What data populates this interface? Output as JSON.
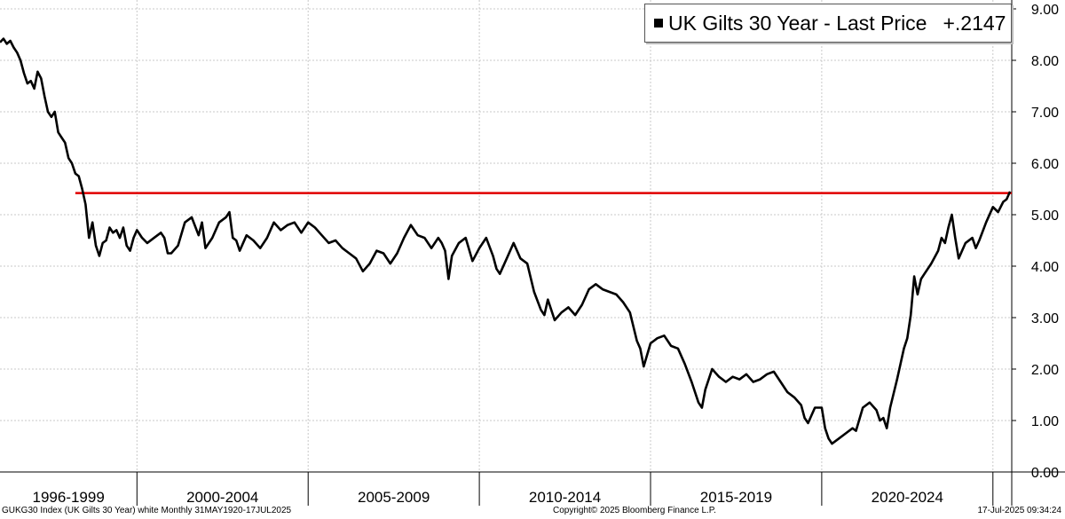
{
  "legend": {
    "label": "UK Gilts 30 Year - Last Price",
    "value": "+.2147"
  },
  "footer": {
    "left": "GUKG30 Index (UK Gilts 30 Year) white  Monthly 31MAY1920-17JUL2025",
    "center": "Copyright© 2025 Bloomberg Finance L.P.",
    "right": "17-Jul-2025 09:34:24"
  },
  "colors": {
    "series": "#000000",
    "reference_line": "#e00000",
    "grid": "#c8c8c8"
  },
  "chart_data": {
    "type": "line",
    "title": "",
    "xlabel": "",
    "ylabel": "",
    "x_range": [
      1996.0,
      2025.55
    ],
    "ylim": [
      0,
      9
    ],
    "y_ticks": [
      "0.00",
      "1.00",
      "2.00",
      "3.00",
      "4.00",
      "5.00",
      "6.00",
      "7.00",
      "8.00",
      "9.00"
    ],
    "y_axis_position": "right",
    "grid": true,
    "legend_position": "top-right",
    "x_period_labels": [
      {
        "label": "1996-1999",
        "start": 1996,
        "end": 2000
      },
      {
        "label": "2000-2004",
        "start": 2000,
        "end": 2005
      },
      {
        "label": "2005-2009",
        "start": 2005,
        "end": 2010
      },
      {
        "label": "2010-2014",
        "start": 2010,
        "end": 2015
      },
      {
        "label": "2015-2019",
        "start": 2015,
        "end": 2020
      },
      {
        "label": "2020-2024",
        "start": 2020,
        "end": 2025
      }
    ],
    "reference_line": {
      "y": 5.42,
      "x_start": 1998.2
    },
    "series": [
      {
        "name": "UK Gilts 30 Year - Last Price",
        "points": [
          [
            1996.0,
            8.35
          ],
          [
            1996.1,
            8.42
          ],
          [
            1996.2,
            8.32
          ],
          [
            1996.3,
            8.38
          ],
          [
            1996.4,
            8.25
          ],
          [
            1996.5,
            8.15
          ],
          [
            1996.6,
            8.0
          ],
          [
            1996.7,
            7.75
          ],
          [
            1996.8,
            7.55
          ],
          [
            1996.9,
            7.6
          ],
          [
            1997.0,
            7.45
          ],
          [
            1997.1,
            7.78
          ],
          [
            1997.2,
            7.65
          ],
          [
            1997.3,
            7.3
          ],
          [
            1997.4,
            7.0
          ],
          [
            1997.5,
            6.9
          ],
          [
            1997.6,
            7.0
          ],
          [
            1997.7,
            6.6
          ],
          [
            1997.8,
            6.5
          ],
          [
            1997.9,
            6.4
          ],
          [
            1998.0,
            6.1
          ],
          [
            1998.1,
            6.0
          ],
          [
            1998.2,
            5.8
          ],
          [
            1998.3,
            5.75
          ],
          [
            1998.4,
            5.5
          ],
          [
            1998.5,
            5.2
          ],
          [
            1998.6,
            4.55
          ],
          [
            1998.7,
            4.85
          ],
          [
            1998.8,
            4.4
          ],
          [
            1998.9,
            4.2
          ],
          [
            1999.0,
            4.45
          ],
          [
            1999.1,
            4.5
          ],
          [
            1999.2,
            4.75
          ],
          [
            1999.3,
            4.65
          ],
          [
            1999.4,
            4.7
          ],
          [
            1999.5,
            4.55
          ],
          [
            1999.6,
            4.75
          ],
          [
            1999.7,
            4.4
          ],
          [
            1999.8,
            4.3
          ],
          [
            1999.9,
            4.55
          ],
          [
            2000.0,
            4.7
          ],
          [
            2000.15,
            4.55
          ],
          [
            2000.3,
            4.45
          ],
          [
            2000.5,
            4.55
          ],
          [
            2000.7,
            4.65
          ],
          [
            2000.8,
            4.55
          ],
          [
            2000.9,
            4.25
          ],
          [
            2001.0,
            4.25
          ],
          [
            2001.2,
            4.4
          ],
          [
            2001.4,
            4.85
          ],
          [
            2001.6,
            4.95
          ],
          [
            2001.8,
            4.6
          ],
          [
            2001.9,
            4.85
          ],
          [
            2002.0,
            4.35
          ],
          [
            2002.2,
            4.55
          ],
          [
            2002.4,
            4.85
          ],
          [
            2002.6,
            4.95
          ],
          [
            2002.7,
            5.05
          ],
          [
            2002.8,
            4.55
          ],
          [
            2002.9,
            4.5
          ],
          [
            2003.0,
            4.3
          ],
          [
            2003.2,
            4.6
          ],
          [
            2003.4,
            4.5
          ],
          [
            2003.6,
            4.35
          ],
          [
            2003.8,
            4.55
          ],
          [
            2004.0,
            4.85
          ],
          [
            2004.2,
            4.7
          ],
          [
            2004.4,
            4.8
          ],
          [
            2004.6,
            4.85
          ],
          [
            2004.8,
            4.65
          ],
          [
            2005.0,
            4.85
          ],
          [
            2005.2,
            4.75
          ],
          [
            2005.4,
            4.6
          ],
          [
            2005.6,
            4.45
          ],
          [
            2005.8,
            4.5
          ],
          [
            2006.0,
            4.35
          ],
          [
            2006.2,
            4.25
          ],
          [
            2006.4,
            4.15
          ],
          [
            2006.6,
            3.9
          ],
          [
            2006.8,
            4.05
          ],
          [
            2007.0,
            4.3
          ],
          [
            2007.2,
            4.25
          ],
          [
            2007.4,
            4.05
          ],
          [
            2007.6,
            4.25
          ],
          [
            2007.8,
            4.55
          ],
          [
            2008.0,
            4.8
          ],
          [
            2008.2,
            4.6
          ],
          [
            2008.4,
            4.55
          ],
          [
            2008.6,
            4.35
          ],
          [
            2008.8,
            4.55
          ],
          [
            2008.9,
            4.45
          ],
          [
            2009.0,
            4.3
          ],
          [
            2009.1,
            3.75
          ],
          [
            2009.2,
            4.2
          ],
          [
            2009.4,
            4.45
          ],
          [
            2009.6,
            4.55
          ],
          [
            2009.8,
            4.1
          ],
          [
            2010.0,
            4.35
          ],
          [
            2010.2,
            4.55
          ],
          [
            2010.4,
            4.2
          ],
          [
            2010.5,
            3.95
          ],
          [
            2010.6,
            3.85
          ],
          [
            2010.8,
            4.15
          ],
          [
            2011.0,
            4.45
          ],
          [
            2011.2,
            4.15
          ],
          [
            2011.4,
            4.05
          ],
          [
            2011.6,
            3.5
          ],
          [
            2011.8,
            3.15
          ],
          [
            2011.9,
            3.05
          ],
          [
            2012.0,
            3.35
          ],
          [
            2012.2,
            2.95
          ],
          [
            2012.4,
            3.1
          ],
          [
            2012.6,
            3.2
          ],
          [
            2012.8,
            3.05
          ],
          [
            2013.0,
            3.25
          ],
          [
            2013.2,
            3.55
          ],
          [
            2013.4,
            3.65
          ],
          [
            2013.6,
            3.55
          ],
          [
            2013.8,
            3.5
          ],
          [
            2014.0,
            3.45
          ],
          [
            2014.2,
            3.3
          ],
          [
            2014.4,
            3.1
          ],
          [
            2014.6,
            2.55
          ],
          [
            2014.7,
            2.4
          ],
          [
            2014.8,
            2.05
          ],
          [
            2015.0,
            2.5
          ],
          [
            2015.2,
            2.6
          ],
          [
            2015.4,
            2.65
          ],
          [
            2015.6,
            2.45
          ],
          [
            2015.8,
            2.4
          ],
          [
            2016.0,
            2.1
          ],
          [
            2016.2,
            1.75
          ],
          [
            2016.4,
            1.35
          ],
          [
            2016.5,
            1.25
          ],
          [
            2016.6,
            1.6
          ],
          [
            2016.8,
            2.0
          ],
          [
            2017.0,
            1.85
          ],
          [
            2017.2,
            1.75
          ],
          [
            2017.4,
            1.85
          ],
          [
            2017.6,
            1.8
          ],
          [
            2017.8,
            1.9
          ],
          [
            2018.0,
            1.75
          ],
          [
            2018.2,
            1.8
          ],
          [
            2018.4,
            1.9
          ],
          [
            2018.6,
            1.95
          ],
          [
            2018.8,
            1.75
          ],
          [
            2019.0,
            1.55
          ],
          [
            2019.2,
            1.45
          ],
          [
            2019.4,
            1.3
          ],
          [
            2019.5,
            1.05
          ],
          [
            2019.6,
            0.95
          ],
          [
            2019.8,
            1.25
          ],
          [
            2020.0,
            1.25
          ],
          [
            2020.1,
            0.85
          ],
          [
            2020.2,
            0.65
          ],
          [
            2020.3,
            0.55
          ],
          [
            2020.5,
            0.65
          ],
          [
            2020.7,
            0.75
          ],
          [
            2020.9,
            0.85
          ],
          [
            2021.0,
            0.8
          ],
          [
            2021.2,
            1.25
          ],
          [
            2021.4,
            1.35
          ],
          [
            2021.6,
            1.2
          ],
          [
            2021.7,
            1.0
          ],
          [
            2021.8,
            1.05
          ],
          [
            2021.9,
            0.85
          ],
          [
            2022.0,
            1.25
          ],
          [
            2022.2,
            1.8
          ],
          [
            2022.4,
            2.4
          ],
          [
            2022.5,
            2.6
          ],
          [
            2022.6,
            3.05
          ],
          [
            2022.7,
            3.8
          ],
          [
            2022.8,
            3.45
          ],
          [
            2022.9,
            3.75
          ],
          [
            2023.0,
            3.85
          ],
          [
            2023.2,
            4.05
          ],
          [
            2023.4,
            4.3
          ],
          [
            2023.5,
            4.55
          ],
          [
            2023.6,
            4.45
          ],
          [
            2023.7,
            4.75
          ],
          [
            2023.8,
            5.0
          ],
          [
            2023.9,
            4.55
          ],
          [
            2024.0,
            4.15
          ],
          [
            2024.2,
            4.45
          ],
          [
            2024.4,
            4.55
          ],
          [
            2024.5,
            4.35
          ],
          [
            2024.6,
            4.5
          ],
          [
            2024.8,
            4.85
          ],
          [
            2025.0,
            5.15
          ],
          [
            2025.15,
            5.05
          ],
          [
            2025.3,
            5.25
          ],
          [
            2025.4,
            5.3
          ],
          [
            2025.5,
            5.45
          ]
        ]
      }
    ]
  }
}
